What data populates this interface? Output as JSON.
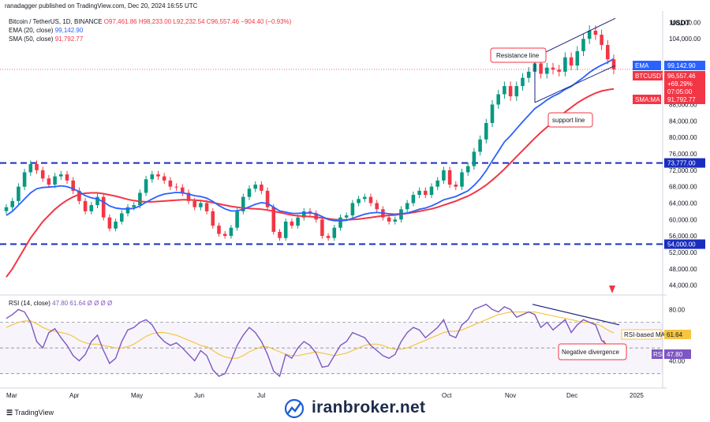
{
  "publisher": "ranadagger published on TradingView.com, Dec 20, 2024 16:55 UTC",
  "legend": {
    "symbol": "Bitcoin / TetherUS, 1D, BINANCE",
    "ohlc": "O97,461.86  H98,233.00  L92,232.54  C96,557.46  −904.40 (−0.93%)",
    "ema": "EMA (20, close)",
    "ema_value": "99,142.90",
    "sma": "SMA (50, close)",
    "sma_value": "91,792.77",
    "rsi": "RSI (14, close)",
    "rsi_values": "47.80  61.64  Ø  Ø  Ø  Ø"
  },
  "currency": "USDT",
  "footer": "TradingView",
  "watermark": "iranbroker.net",
  "colors": {
    "up": "#089981",
    "down": "#f23645",
    "ema": "#2962ff",
    "sma": "#f23645",
    "rsi": "#7e57c2",
    "rsi_ma": "#f5c542",
    "level": "#1a2dbf",
    "channel": "#1a237e"
  },
  "chart_data": [
    {
      "type": "candlestick",
      "title": "Bitcoin / TetherUS, 1D, BINANCE",
      "x_axis_ticks": [
        "Mar",
        "Apr",
        "May",
        "Jun",
        "Jul",
        "Oct",
        "Nov",
        "Dec",
        "2025"
      ],
      "y_axis_ticks": [
        44000,
        48000,
        52000,
        56000,
        60000,
        64000,
        68000,
        72000,
        76000,
        80000,
        84000,
        88000,
        104000,
        108000
      ],
      "ylim": [
        42000,
        110000
      ],
      "price_labels": [
        {
          "label": "EMA",
          "value": "99,142.90"
        },
        {
          "label": "BTCUSDT",
          "value": "96,557.46",
          "change": "+69.29%",
          "countdown": "07:05:00"
        },
        {
          "label": "SMA:MA",
          "value": "91,792.77"
        },
        {
          "label": "",
          "value": "73,777.00"
        },
        {
          "label": "",
          "value": "54,000.00"
        }
      ],
      "horizontal_levels": [
        73777,
        54000
      ],
      "annotations": [
        "Resistance line",
        "support line"
      ],
      "price_path": [
        63000,
        64500,
        68000,
        71500,
        73500,
        72000,
        70000,
        68500,
        70500,
        71000,
        69500,
        67000,
        64500,
        62000,
        63500,
        65500,
        60500,
        57800,
        59500,
        61500,
        63000,
        63500,
        66500,
        69800,
        71000,
        70500,
        69500,
        68000,
        67800,
        66500,
        64500,
        63000,
        64000,
        62000,
        58500,
        56500,
        56000,
        58000,
        62000,
        65500,
        67500,
        68500,
        67000,
        63000,
        57000,
        55500,
        59500,
        58500,
        60500,
        62000,
        61500,
        60000,
        56000,
        55500,
        58000,
        60500,
        61000,
        64000,
        65000,
        65500,
        64000,
        62500,
        60500,
        59500,
        60000,
        62500,
        64000,
        66000,
        67000,
        66000,
        68000,
        69500,
        72000,
        68500,
        68000,
        71500,
        73000,
        76500,
        79500,
        83500,
        88000,
        90500,
        92500,
        90000,
        92500,
        94500,
        96000,
        98000,
        95500,
        97000,
        96500,
        96000,
        99500,
        97500,
        101000,
        104000,
        106000,
        105000,
        102500,
        99000,
        96557
      ],
      "ema_20": [
        61000,
        62000,
        63500,
        65000,
        66500,
        67500,
        67800,
        67900,
        68000,
        68200,
        68000,
        67500,
        66800,
        65800,
        65300,
        65000,
        64300,
        63300,
        62800,
        62600,
        62600,
        62700,
        63300,
        64200,
        65000,
        65700,
        66200,
        66400,
        66600,
        66500,
        66200,
        65800,
        65600,
        65200,
        64400,
        63400,
        62600,
        62100,
        62100,
        62500,
        63100,
        63700,
        64100,
        63900,
        63000,
        62100,
        61800,
        61500,
        61500,
        61600,
        61600,
        61400,
        60700,
        60000,
        59700,
        59700,
        59800,
        60300,
        60800,
        61300,
        61600,
        61700,
        61600,
        61400,
        61300,
        61400,
        61600,
        62000,
        62500,
        62800,
        63300,
        64000,
        64800,
        65200,
        65600,
        66300,
        67000,
        68300,
        69900,
        71900,
        74300,
        76600,
        78900,
        80400,
        82100,
        83800,
        85400,
        87000,
        88000,
        89100,
        90000,
        90700,
        91700,
        92400,
        93500,
        94600,
        95800,
        96800,
        97600,
        98300,
        99142
      ],
      "sma_50": [
        46000,
        48000,
        50500,
        53000,
        55500,
        57500,
        59500,
        61000,
        62500,
        63700,
        64700,
        65500,
        66100,
        66400,
        66500,
        66500,
        66300,
        66000,
        65700,
        65300,
        64900,
        64600,
        64400,
        64300,
        64300,
        64400,
        64500,
        64600,
        64700,
        64800,
        64800,
        64700,
        64600,
        64400,
        64100,
        63800,
        63500,
        63200,
        63000,
        62800,
        62700,
        62600,
        62500,
        62300,
        62000,
        61700,
        61400,
        61100,
        60900,
        60800,
        60700,
        60600,
        60400,
        60200,
        60000,
        59900,
        59900,
        60000,
        60100,
        60300,
        60500,
        60700,
        60900,
        61000,
        61100,
        61300,
        61500,
        61700,
        62000,
        62300,
        62600,
        63000,
        63500,
        64000,
        64500,
        65100,
        65700,
        66500,
        67400,
        68400,
        69600,
        70900,
        72300,
        73800,
        75300,
        76800,
        78300,
        79800,
        81200,
        82500,
        83800,
        85000,
        86200,
        87300,
        88400,
        89300,
        90100,
        90800,
        91300,
        91600,
        91792
      ]
    },
    {
      "type": "line",
      "title": "RSI (14, close)",
      "series": [
        {
          "name": "RSI",
          "last": 47.8
        },
        {
          "name": "RSI-based MA",
          "last": 61.64
        }
      ],
      "y_axis_ticks": [
        40.0,
        80.0
      ],
      "ylim": [
        20,
        90
      ],
      "guides": [
        70,
        50,
        30
      ],
      "annotations": [
        "Negative divergence"
      ],
      "rsi_path": [
        73,
        76,
        80,
        78,
        70,
        55,
        50,
        62,
        65,
        58,
        52,
        44,
        40,
        45,
        55,
        60,
        48,
        38,
        42,
        55,
        64,
        66,
        70,
        72,
        68,
        60,
        55,
        52,
        54,
        50,
        45,
        40,
        48,
        44,
        33,
        28,
        30,
        40,
        52,
        60,
        66,
        62,
        55,
        45,
        32,
        28,
        45,
        42,
        50,
        55,
        52,
        46,
        35,
        36,
        44,
        52,
        55,
        62,
        60,
        58,
        52,
        48,
        44,
        42,
        45,
        55,
        62,
        66,
        64,
        58,
        62,
        66,
        72,
        60,
        58,
        68,
        72,
        80,
        82,
        84,
        80,
        78,
        82,
        80,
        74,
        76,
        78,
        76,
        66,
        70,
        64,
        68,
        72,
        62,
        68,
        72,
        70,
        68,
        56,
        52,
        47.8
      ],
      "rsi_ma_path": [
        66,
        68,
        70,
        71,
        71,
        69,
        66,
        64,
        63,
        62,
        61,
        59,
        56,
        54,
        53,
        53,
        52,
        51,
        50,
        50,
        51,
        53,
        56,
        59,
        61,
        62,
        62,
        61,
        60,
        58,
        56,
        54,
        52,
        51,
        48,
        45,
        43,
        42,
        42,
        44,
        47,
        49,
        51,
        51,
        49,
        47,
        45,
        44,
        44,
        45,
        46,
        47,
        46,
        45,
        44,
        45,
        46,
        48,
        50,
        52,
        53,
        53,
        52,
        50,
        49,
        49,
        50,
        52,
        54,
        56,
        58,
        60,
        62,
        63,
        63,
        64,
        66,
        68,
        70,
        72,
        74,
        76,
        77,
        78,
        78,
        78,
        78,
        78,
        77,
        76,
        75,
        74,
        73,
        72,
        71,
        70,
        70,
        69,
        67,
        64,
        61.64
      ]
    }
  ]
}
